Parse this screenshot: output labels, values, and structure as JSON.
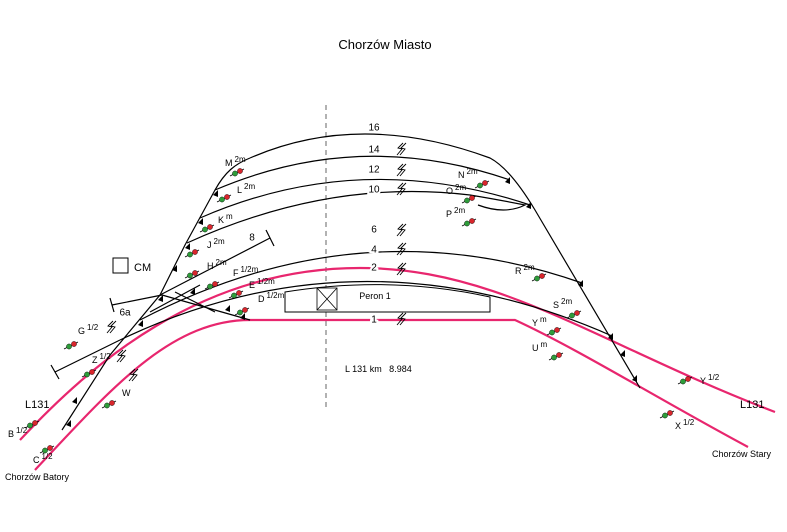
{
  "title": "Chorzów Miasto",
  "station_box": "CM",
  "platform": "Peron 1",
  "kilometer": "L 131 km   8.984",
  "lines": {
    "left": "L131",
    "right": "L131"
  },
  "destinations": {
    "left": "Chorzów Batory",
    "right": "Chorzów Stary"
  },
  "tracks": [
    "16",
    "14",
    "12",
    "10",
    "8",
    "6",
    "4",
    "2",
    "1",
    "6a"
  ],
  "signals": [
    {
      "name": "M",
      "aspect": "2m"
    },
    {
      "name": "L",
      "aspect": "2m"
    },
    {
      "name": "K",
      "aspect": "m"
    },
    {
      "name": "J",
      "aspect": "2m"
    },
    {
      "name": "H",
      "aspect": "2m"
    },
    {
      "name": "F",
      "aspect": "1/2m"
    },
    {
      "name": "E",
      "aspect": "1/2m"
    },
    {
      "name": "D",
      "aspect": "1/2m"
    },
    {
      "name": "G",
      "aspect": "1/2"
    },
    {
      "name": "Z",
      "aspect": "1/2"
    },
    {
      "name": "W"
    },
    {
      "name": "B",
      "aspect": "1/2"
    },
    {
      "name": "C",
      "aspect": "1/2"
    },
    {
      "name": "N",
      "aspect": "2m"
    },
    {
      "name": "O",
      "aspect": "2m"
    },
    {
      "name": "P",
      "aspect": "2m"
    },
    {
      "name": "R",
      "aspect": "2m"
    },
    {
      "name": "S",
      "aspect": "2m"
    },
    {
      "name": "Y",
      "aspect": "m"
    },
    {
      "name": "U",
      "aspect": "m"
    },
    {
      "name": "Y",
      "aspect": "1/2"
    },
    {
      "name": "X",
      "aspect": "1/2"
    }
  ]
}
